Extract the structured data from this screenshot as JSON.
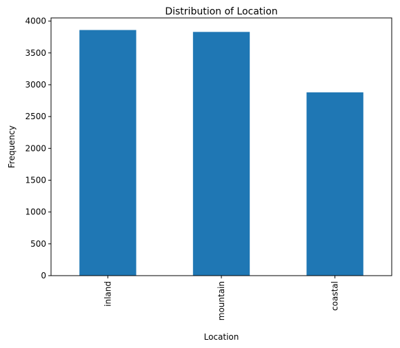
{
  "chart_data": {
    "type": "bar",
    "title": "Distribution of Location",
    "xlabel": "Location",
    "ylabel": "Frequency",
    "categories": [
      "inland",
      "mountain",
      "coastal"
    ],
    "values": [
      3860,
      3830,
      2880
    ],
    "ylim": [
      0,
      4050
    ],
    "yticks": [
      0,
      500,
      1000,
      1500,
      2000,
      2500,
      3000,
      3500,
      4000
    ],
    "bar_color": "#1f77b4",
    "grid": false,
    "legend": false
  }
}
